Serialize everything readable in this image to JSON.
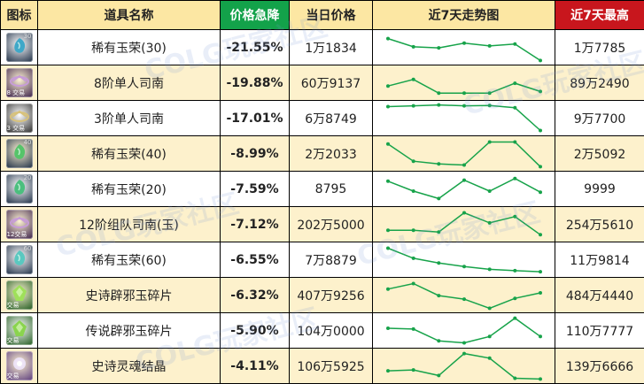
{
  "header": {
    "icon": "图标",
    "name": "道具名称",
    "drop": "价格急降",
    "price": "当日价格",
    "trend": "近7天走势图",
    "max": "近7天最高"
  },
  "colors": {
    "header_bg": "#fce7a3",
    "drop_header_bg": "#13a24a",
    "max_header_bg": "#c8161d",
    "stripe_bg": "#fdf1cc",
    "drop_text": "#12a046",
    "trend_line": "#17a34a"
  },
  "watermark": "COLG玩家社区",
  "rows": [
    {
      "name": "稀有玉荣(30)",
      "drop": "-21.55%",
      "price": "1万1834",
      "max": "1万7785",
      "icon": {
        "name": "green-jade-icon",
        "bg": "#1b2c44",
        "gem": "#3fa8c8",
        "badge": "30",
        "trade": ""
      },
      "trend": [
        0.82,
        0.52,
        0.48,
        0.65,
        0.55,
        0.62,
        0.02
      ]
    },
    {
      "name": "8阶单人司南",
      "drop": "-19.88%",
      "price": "60万9137",
      "max": "89万2490",
      "icon": {
        "name": "compass-icon",
        "bg": "#3a1f48",
        "gem": "#c79cd8",
        "badge": "",
        "trade": "8 交易"
      },
      "trend": [
        0.38,
        0.62,
        0.12,
        0.12,
        0.12,
        0.48,
        0.18
      ]
    },
    {
      "name": "3阶单人司南",
      "drop": "-17.01%",
      "price": "6万8749",
      "max": "9万7700",
      "icon": {
        "name": "compass-icon",
        "bg": "#2a2a2a",
        "gem": "#d8c27a",
        "badge": "",
        "trade": "3 交易"
      },
      "trend": [
        0.92,
        0.95,
        0.98,
        0.95,
        0.96,
        0.88,
        0.05
      ]
    },
    {
      "name": "稀有玉荣(40)",
      "drop": "-8.99%",
      "price": "2万2033",
      "max": "2万5092",
      "icon": {
        "name": "green-jade-icon",
        "bg": "#1b2c44",
        "gem": "#56c46a",
        "badge": "40",
        "trade": ""
      },
      "trend": [
        0.85,
        0.22,
        0.12,
        0.08,
        0.92,
        0.92,
        0.02
      ]
    },
    {
      "name": "稀有玉荣(20)",
      "drop": "-7.59%",
      "price": "8795",
      "max": "9999",
      "icon": {
        "name": "green-jade-icon",
        "bg": "#1b2c44",
        "gem": "#4bbf7e",
        "badge": "20",
        "trade": ""
      },
      "trend": [
        0.78,
        0.42,
        0.15,
        0.82,
        0.42,
        0.88,
        0.38
      ]
    },
    {
      "name": "12阶组队司南(玉)",
      "drop": "-7.12%",
      "price": "202万5000",
      "max": "254万5610",
      "icon": {
        "name": "compass-icon",
        "bg": "#3a1f48",
        "gem": "#c79cd8",
        "badge": "",
        "trade": "12交易"
      },
      "trend": [
        0.28,
        0.28,
        0.22,
        0.92,
        0.55,
        0.78,
        0.12
      ]
    },
    {
      "name": "稀有玉荣(60)",
      "drop": "-6.55%",
      "price": "7万8879",
      "max": "11万9814",
      "icon": {
        "name": "green-jade-icon",
        "bg": "#1b2c44",
        "gem": "#5ac8c0",
        "badge": "60",
        "trade": ""
      },
      "trend": [
        0.92,
        0.55,
        0.38,
        0.25,
        0.15,
        0.1,
        0.06
      ]
    },
    {
      "name": "史诗辟邪玉碎片",
      "drop": "-6.32%",
      "price": "407万9256",
      "max": "484万4440",
      "icon": {
        "name": "jade-fragment-icon",
        "bg": "#1f5a1e",
        "gem": "#9fe05a",
        "badge": "",
        "trade": "交易"
      },
      "trend": [
        0.72,
        0.92,
        0.48,
        0.35,
        0.02,
        0.38,
        0.58
      ]
    },
    {
      "name": "传说辟邪玉碎片",
      "drop": "-5.90%",
      "price": "104万0000",
      "max": "110万7777",
      "icon": {
        "name": "jade-fragment-icon",
        "bg": "#1f5a1e",
        "gem": "#8ad44e",
        "badge": "",
        "trade": "交易"
      },
      "trend": [
        0.58,
        0.55,
        0.12,
        0.05,
        0.28,
        0.95,
        0.28
      ]
    },
    {
      "name": "史诗灵魂结晶",
      "drop": "-4.11%",
      "price": "106万5925",
      "max": "139万6666",
      "icon": {
        "name": "soul-crystal-icon",
        "bg": "#5a3a7a",
        "gem": "#f0e6ff",
        "badge": "",
        "trade": "交易"
      },
      "trend": [
        0.32,
        0.35,
        0.15,
        0.95,
        0.78,
        0.05,
        0.02
      ]
    }
  ]
}
